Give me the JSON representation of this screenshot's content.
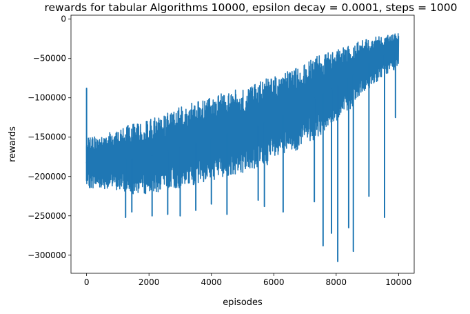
{
  "chart_data": {
    "type": "line",
    "title": "rewards for tabular Algorithms 10000, epsilon decay = 0.0001, steps = 1000",
    "xlabel": "episodes",
    "ylabel": "rewards",
    "xlim": [
      -500,
      10500
    ],
    "ylim": [
      -323000,
      5000
    ],
    "xticks": [
      0,
      2000,
      4000,
      6000,
      8000,
      10000
    ],
    "xtick_labels": [
      "0",
      "2000",
      "4000",
      "6000",
      "8000",
      "10000"
    ],
    "yticks": [
      0,
      -50000,
      -100000,
      -150000,
      -200000,
      -250000,
      -300000
    ],
    "ytick_labels": [
      "0",
      "−50000",
      "−100000",
      "−150000",
      "−200000",
      "−250000",
      "−300000"
    ],
    "grid": false,
    "legend": "none",
    "series": [
      {
        "color": "#1f77b4",
        "band": {
          "x": [
            0,
            500,
            1000,
            1500,
            2000,
            2500,
            3000,
            3500,
            4000,
            4500,
            5000,
            5500,
            6000,
            6500,
            7000,
            7500,
            8000,
            8500,
            9000,
            9500,
            10000
          ],
          "upper": [
            -150000,
            -148000,
            -140000,
            -132000,
            -128000,
            -120000,
            -112000,
            -105000,
            -100000,
            -92000,
            -88000,
            -80000,
            -72000,
            -65000,
            -55000,
            -45000,
            -40000,
            -32000,
            -25000,
            -20000,
            -18000
          ],
          "lower": [
            -215000,
            -215000,
            -218000,
            -222000,
            -222000,
            -218000,
            -215000,
            -210000,
            -205000,
            -200000,
            -195000,
            -190000,
            -182000,
            -172000,
            -160000,
            -148000,
            -132000,
            -112000,
            -90000,
            -72000,
            -62000
          ]
        },
        "spikes": [
          {
            "x": 0,
            "y": -88000
          },
          {
            "x": 0,
            "y": -205000
          },
          {
            "x": 1250,
            "y": -252000
          },
          {
            "x": 1450,
            "y": -245000
          },
          {
            "x": 2100,
            "y": -250000
          },
          {
            "x": 2600,
            "y": -248000
          },
          {
            "x": 3000,
            "y": -250000
          },
          {
            "x": 3500,
            "y": -243000
          },
          {
            "x": 4000,
            "y": -235000
          },
          {
            "x": 4500,
            "y": -248000
          },
          {
            "x": 5500,
            "y": -230000
          },
          {
            "x": 5700,
            "y": -238000
          },
          {
            "x": 6300,
            "y": -245000
          },
          {
            "x": 7300,
            "y": -232000
          },
          {
            "x": 7580,
            "y": -288000
          },
          {
            "x": 7850,
            "y": -272000
          },
          {
            "x": 8050,
            "y": -308000
          },
          {
            "x": 8400,
            "y": -265000
          },
          {
            "x": 8550,
            "y": -295000
          },
          {
            "x": 9050,
            "y": -225000
          },
          {
            "x": 9550,
            "y": -252000
          },
          {
            "x": 9900,
            "y": -125000
          }
        ]
      }
    ]
  }
}
